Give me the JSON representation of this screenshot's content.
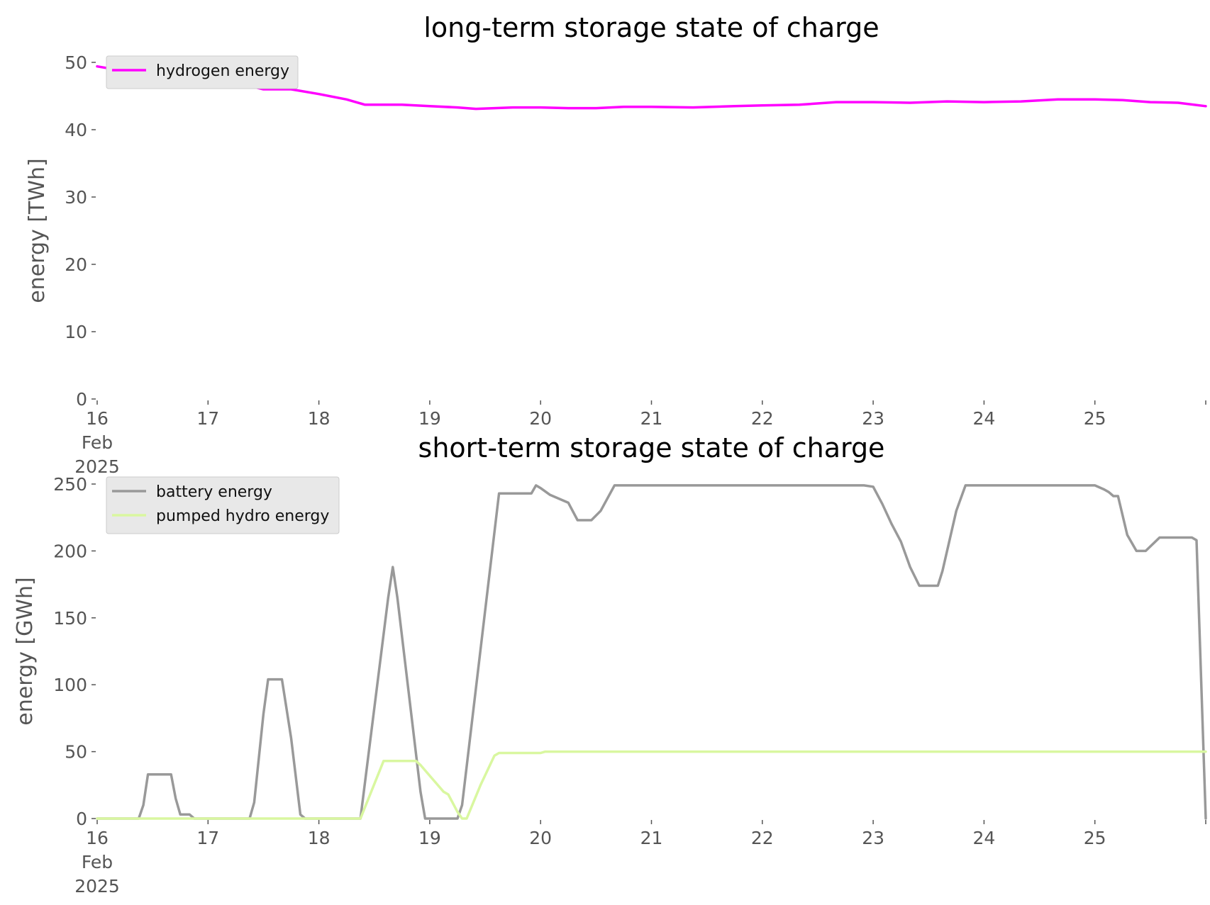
{
  "chart_data": [
    {
      "type": "line",
      "title": "long-term storage state of charge",
      "xlabel": "",
      "ylabel": "energy [TWh]",
      "xlim": [
        "2025-02-16",
        "2025-02-26"
      ],
      "ylim": [
        0,
        50
      ],
      "x_ticks": [
        {
          "value": "2025-02-16",
          "lines": [
            "16",
            "Feb",
            "2025"
          ]
        },
        {
          "value": "2025-02-17",
          "lines": [
            "17"
          ]
        },
        {
          "value": "2025-02-18",
          "lines": [
            "18"
          ]
        },
        {
          "value": "2025-02-19",
          "lines": [
            "19"
          ]
        },
        {
          "value": "2025-02-20",
          "lines": [
            "20"
          ]
        },
        {
          "value": "2025-02-21",
          "lines": [
            "21"
          ]
        },
        {
          "value": "2025-02-22",
          "lines": [
            "22"
          ]
        },
        {
          "value": "2025-02-23",
          "lines": [
            "23"
          ]
        },
        {
          "value": "2025-02-24",
          "lines": [
            "24"
          ]
        },
        {
          "value": "2025-02-25",
          "lines": [
            "25"
          ]
        }
      ],
      "y_ticks": [
        "0",
        "10",
        "20",
        "30",
        "40",
        "50"
      ],
      "grid": false,
      "legend_position": "top-left",
      "series": [
        {
          "name": "hydrogen energy",
          "color": "#ff00ff",
          "points": [
            [
              "2025-02-16 00:00",
              49.4
            ],
            [
              "2025-02-16 06:00",
              48.7
            ],
            [
              "2025-02-16 12:00",
              48.3
            ],
            [
              "2025-02-16 18:00",
              48.0
            ],
            [
              "2025-02-17 00:00",
              47.6
            ],
            [
              "2025-02-17 06:00",
              47.0
            ],
            [
              "2025-02-17 09:00",
              46.5
            ],
            [
              "2025-02-17 12:00",
              46.0
            ],
            [
              "2025-02-17 18:00",
              46.0
            ],
            [
              "2025-02-18 00:00",
              45.3
            ],
            [
              "2025-02-18 06:00",
              44.5
            ],
            [
              "2025-02-18 10:00",
              43.7
            ],
            [
              "2025-02-18 18:00",
              43.7
            ],
            [
              "2025-02-19 00:00",
              43.5
            ],
            [
              "2025-02-19 06:00",
              43.3
            ],
            [
              "2025-02-19 10:00",
              43.1
            ],
            [
              "2025-02-19 18:00",
              43.3
            ],
            [
              "2025-02-20 00:00",
              43.3
            ],
            [
              "2025-02-20 06:00",
              43.2
            ],
            [
              "2025-02-20 12:00",
              43.2
            ],
            [
              "2025-02-20 18:00",
              43.4
            ],
            [
              "2025-02-21 00:00",
              43.4
            ],
            [
              "2025-02-21 09:00",
              43.3
            ],
            [
              "2025-02-21 18:00",
              43.5
            ],
            [
              "2025-02-22 00:00",
              43.6
            ],
            [
              "2025-02-22 08:00",
              43.7
            ],
            [
              "2025-02-22 16:00",
              44.1
            ],
            [
              "2025-02-23 00:00",
              44.1
            ],
            [
              "2025-02-23 08:00",
              44.0
            ],
            [
              "2025-02-23 16:00",
              44.2
            ],
            [
              "2025-02-24 00:00",
              44.1
            ],
            [
              "2025-02-24 08:00",
              44.2
            ],
            [
              "2025-02-24 16:00",
              44.5
            ],
            [
              "2025-02-25 00:00",
              44.5
            ],
            [
              "2025-02-25 06:00",
              44.4
            ],
            [
              "2025-02-25 12:00",
              44.1
            ],
            [
              "2025-02-25 18:00",
              44.0
            ],
            [
              "2025-02-26 00:00",
              43.5
            ]
          ]
        }
      ]
    },
    {
      "type": "line",
      "title": "short-term storage state of charge",
      "xlabel": "",
      "ylabel": "energy [GWh]",
      "xlim": [
        "2025-02-16",
        "2025-02-26"
      ],
      "ylim": [
        0,
        250
      ],
      "x_ticks": [
        {
          "value": "2025-02-16",
          "lines": [
            "16",
            "Feb",
            "2025"
          ]
        },
        {
          "value": "2025-02-17",
          "lines": [
            "17"
          ]
        },
        {
          "value": "2025-02-18",
          "lines": [
            "18"
          ]
        },
        {
          "value": "2025-02-19",
          "lines": [
            "19"
          ]
        },
        {
          "value": "2025-02-20",
          "lines": [
            "20"
          ]
        },
        {
          "value": "2025-02-21",
          "lines": [
            "21"
          ]
        },
        {
          "value": "2025-02-22",
          "lines": [
            "22"
          ]
        },
        {
          "value": "2025-02-23",
          "lines": [
            "23"
          ]
        },
        {
          "value": "2025-02-24",
          "lines": [
            "24"
          ]
        },
        {
          "value": "2025-02-25",
          "lines": [
            "25"
          ]
        }
      ],
      "y_ticks": [
        "0",
        "50",
        "100",
        "150",
        "200",
        "250"
      ],
      "grid": false,
      "legend_position": "top-left",
      "series": [
        {
          "name": "battery energy",
          "color": "#999999",
          "points": [
            [
              "2025-02-16 00:00",
              0
            ],
            [
              "2025-02-16 09:00",
              0
            ],
            [
              "2025-02-16 10:00",
              10
            ],
            [
              "2025-02-16 11:00",
              33
            ],
            [
              "2025-02-16 16:00",
              33
            ],
            [
              "2025-02-16 17:00",
              15
            ],
            [
              "2025-02-16 18:00",
              3
            ],
            [
              "2025-02-16 20:00",
              3
            ],
            [
              "2025-02-16 21:00",
              0
            ],
            [
              "2025-02-17 09:00",
              0
            ],
            [
              "2025-02-17 10:00",
              12
            ],
            [
              "2025-02-17 12:00",
              78
            ],
            [
              "2025-02-17 13:00",
              104
            ],
            [
              "2025-02-17 16:00",
              104
            ],
            [
              "2025-02-17 18:00",
              60
            ],
            [
              "2025-02-17 20:00",
              3
            ],
            [
              "2025-02-17 21:00",
              0
            ],
            [
              "2025-02-18 09:00",
              0
            ],
            [
              "2025-02-18 15:00",
              165
            ],
            [
              "2025-02-18 16:00",
              188
            ],
            [
              "2025-02-18 17:00",
              165
            ],
            [
              "2025-02-18 22:00",
              20
            ],
            [
              "2025-02-18 23:00",
              0
            ],
            [
              "2025-02-19 06:00",
              0
            ],
            [
              "2025-02-19 07:00",
              10
            ],
            [
              "2025-02-19 15:00",
              243
            ],
            [
              "2025-02-19 22:00",
              243
            ],
            [
              "2025-02-19 23:00",
              249
            ],
            [
              "2025-02-20 00:00",
              247
            ],
            [
              "2025-02-20 02:00",
              242
            ],
            [
              "2025-02-20 06:00",
              236
            ],
            [
              "2025-02-20 08:00",
              223
            ],
            [
              "2025-02-20 11:00",
              223
            ],
            [
              "2025-02-20 13:00",
              230
            ],
            [
              "2025-02-20 16:00",
              249
            ],
            [
              "2025-02-22 22:00",
              249
            ],
            [
              "2025-02-23 00:00",
              248
            ],
            [
              "2025-02-23 02:00",
              235
            ],
            [
              "2025-02-23 04:00",
              220
            ],
            [
              "2025-02-23 06:00",
              207
            ],
            [
              "2025-02-23 08:00",
              188
            ],
            [
              "2025-02-23 10:00",
              174
            ],
            [
              "2025-02-23 14:00",
              174
            ],
            [
              "2025-02-23 15:00",
              185
            ],
            [
              "2025-02-23 18:00",
              230
            ],
            [
              "2025-02-23 20:00",
              249
            ],
            [
              "2025-02-25 00:00",
              249
            ],
            [
              "2025-02-25 02:00",
              246
            ],
            [
              "2025-02-25 03:00",
              244
            ],
            [
              "2025-02-25 04:00",
              241
            ],
            [
              "2025-02-25 05:00",
              241
            ],
            [
              "2025-02-25 07:00",
              212
            ],
            [
              "2025-02-25 09:00",
              200
            ],
            [
              "2025-02-25 11:00",
              200
            ],
            [
              "2025-02-25 14:00",
              210
            ],
            [
              "2025-02-25 21:00",
              210
            ],
            [
              "2025-02-25 22:00",
              208
            ],
            [
              "2025-02-26 00:00",
              0
            ]
          ]
        },
        {
          "name": "pumped hydro energy",
          "color": "#d9f7a0",
          "points": [
            [
              "2025-02-16 00:00",
              0
            ],
            [
              "2025-02-18 09:00",
              0
            ],
            [
              "2025-02-18 14:00",
              43
            ],
            [
              "2025-02-18 21:00",
              43
            ],
            [
              "2025-02-18 22:00",
              40
            ],
            [
              "2025-02-19 00:00",
              32
            ],
            [
              "2025-02-19 01:00",
              28
            ],
            [
              "2025-02-19 03:00",
              20
            ],
            [
              "2025-02-19 04:00",
              18
            ],
            [
              "2025-02-19 06:00",
              5
            ],
            [
              "2025-02-19 07:00",
              0
            ],
            [
              "2025-02-19 08:00",
              0
            ],
            [
              "2025-02-19 11:00",
              25
            ],
            [
              "2025-02-19 14:00",
              47
            ],
            [
              "2025-02-19 15:00",
              49
            ],
            [
              "2025-02-20 00:00",
              49
            ],
            [
              "2025-02-20 01:00",
              50
            ],
            [
              "2025-02-26 00:00",
              50
            ]
          ]
        }
      ]
    }
  ]
}
